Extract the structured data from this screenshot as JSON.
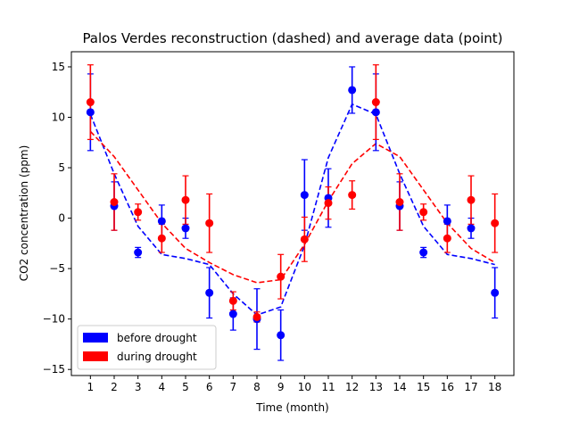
{
  "chart_data": {
    "type": "scatter",
    "title": "Palos Verdes reconstruction (dashed) and average data (point)",
    "xlabel": "Time (month)",
    "ylabel": "CO2 concentration (ppm)",
    "xlim": [
      0.2,
      18.8
    ],
    "ylim": [
      -15.6,
      16.5
    ],
    "xticks": [
      "1",
      "2",
      "3",
      "4",
      "5",
      "6",
      "7",
      "8",
      "9",
      "10",
      "11",
      "12",
      "13",
      "14",
      "15",
      "16",
      "17",
      "18"
    ],
    "yticks": [
      -15,
      -10,
      -5,
      0,
      5,
      10,
      15
    ],
    "legend_position": "lower-left",
    "series": [
      {
        "name": "before drought",
        "color": "#0000ff",
        "x": [
          1,
          2,
          3,
          4,
          5,
          6,
          7,
          8,
          9,
          10,
          11,
          12,
          13,
          14,
          15,
          16,
          17,
          18
        ],
        "y": [
          10.5,
          1.2,
          -3.4,
          -0.3,
          -1.0,
          -7.4,
          -9.5,
          -10.0,
          -11.6,
          2.3,
          2.0,
          12.7,
          10.5,
          1.2,
          -3.4,
          -0.3,
          -1.0,
          -7.4
        ],
        "err": [
          3.8,
          2.4,
          0.5,
          1.6,
          1.0,
          2.5,
          1.6,
          3.0,
          2.5,
          3.5,
          2.9,
          2.3,
          3.8,
          2.4,
          0.5,
          1.6,
          1.0,
          2.5
        ],
        "reconstruction": [
          10.3,
          4.4,
          -0.8,
          -3.6,
          -4.0,
          -4.6,
          -7.5,
          -9.6,
          -8.8,
          -2.7,
          6.0,
          11.3,
          10.3,
          4.4,
          -0.8,
          -3.6,
          -4.0,
          -4.6
        ]
      },
      {
        "name": "during drought",
        "color": "#ff0000",
        "x": [
          1,
          2,
          3,
          4,
          5,
          6,
          7,
          8,
          9,
          10,
          11,
          12,
          13,
          14,
          15,
          16,
          17,
          18
        ],
        "y": [
          11.5,
          1.6,
          0.6,
          -2.0,
          1.8,
          -0.5,
          -8.2,
          -9.8,
          -5.8,
          -2.1,
          1.5,
          2.3,
          11.5,
          1.6,
          0.6,
          -2.0,
          1.8,
          -0.5
        ],
        "err": [
          3.7,
          2.8,
          0.8,
          1.4,
          2.4,
          2.9,
          0.9,
          0.5,
          2.2,
          2.2,
          1.6,
          1.4,
          3.7,
          2.8,
          0.8,
          1.4,
          2.4,
          2.9
        ],
        "reconstruction": [
          8.6,
          6.1,
          2.8,
          -0.5,
          -3.0,
          -4.4,
          -5.6,
          -6.4,
          -6.1,
          -2.6,
          1.7,
          5.4,
          7.4,
          6.1,
          2.8,
          -0.5,
          -3.0,
          -4.4
        ]
      }
    ]
  }
}
